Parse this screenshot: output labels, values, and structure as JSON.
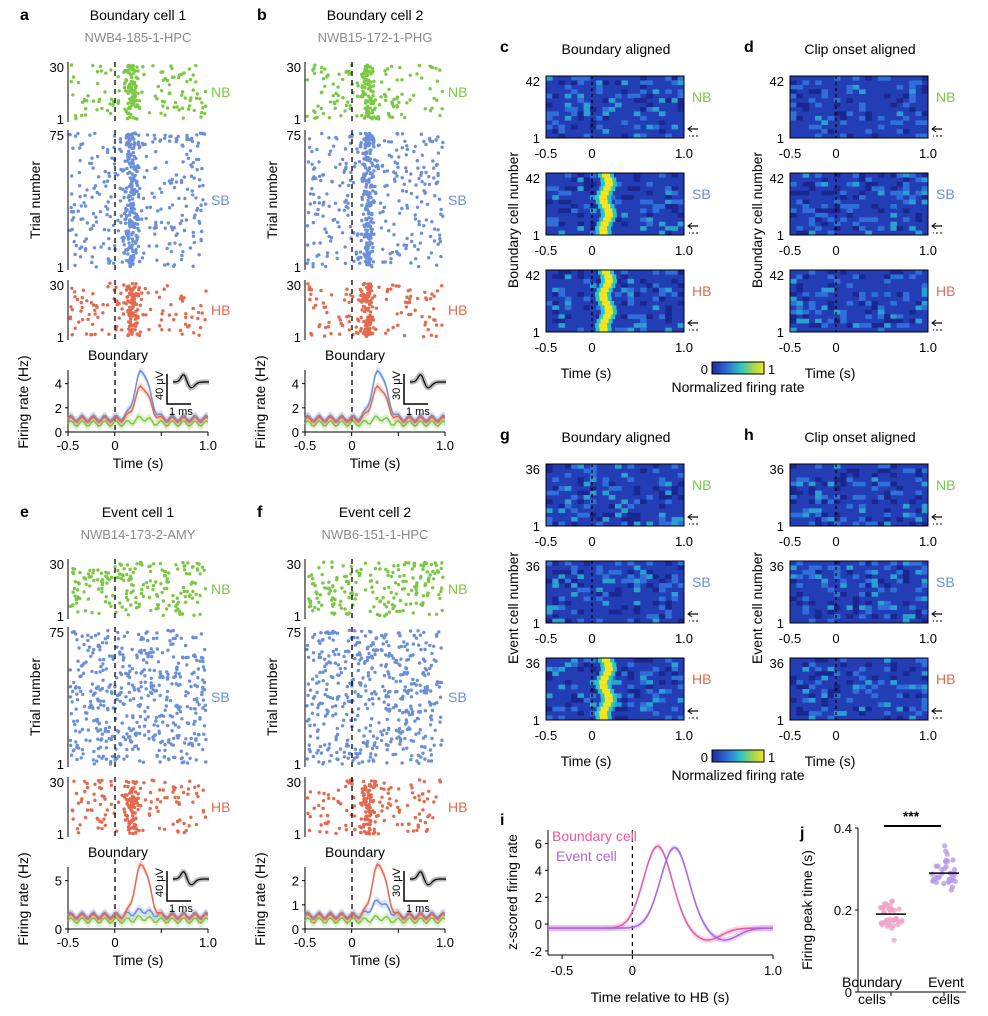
{
  "colors": {
    "nb": "#7ac943",
    "sb": "#6b8fd9",
    "hb": "#e36a4f",
    "boundary_cell": "#e85aa0",
    "event_cell": "#a766e8",
    "beeswarm_boundary": "#efa3c9",
    "beeswarm_event": "#b79be8"
  },
  "panel_letters": {
    "a": "a",
    "b": "b",
    "c": "c",
    "d": "d",
    "e": "e",
    "f": "f",
    "g": "g",
    "h": "h",
    "i": "i",
    "j": "j"
  },
  "condition_labels": {
    "nb": "NB",
    "sb": "SB",
    "hb": "HB"
  },
  "raster_panels": [
    {
      "id": "a",
      "title": "Boundary cell 1",
      "cell_id": "NWB4-185-1-HPC",
      "psth_title": "Boundary",
      "psth_ylabel": "Firing rate (Hz)",
      "psth_yticks": [
        "0",
        "2",
        "4"
      ],
      "scale_uv": "40 μV",
      "scale_ms": "1 ms",
      "peak_hz": 6
    },
    {
      "id": "b",
      "title": "Boundary cell 2",
      "cell_id": "NWB15-172-1-PHG",
      "psth_title": "Boundary",
      "psth_ylabel": "Firing rate (Hz)",
      "psth_yticks": [
        "0",
        "2",
        "4"
      ],
      "scale_uv": "30 μV",
      "scale_ms": "1 ms",
      "peak_hz": 4
    },
    {
      "id": "e",
      "title": "Event cell 1",
      "cell_id": "NWB14-173-2-AMY",
      "psth_title": "Boundary",
      "psth_ylabel": "Firing rate (Hz)",
      "psth_yticks": [
        "0",
        "5"
      ],
      "scale_uv": "40 μV",
      "scale_ms": "1 ms",
      "peak_hz": 7
    },
    {
      "id": "f",
      "title": "Event cell 2",
      "cell_id": "NWB6-151-1-HPC",
      "psth_title": "Boundary",
      "psth_ylabel": "Firing rate (Hz)",
      "psth_yticks": [
        "0",
        "1",
        "2"
      ],
      "scale_uv": "30 μV",
      "scale_ms": "1 ms",
      "peak_hz": 2.8
    }
  ],
  "raster_common": {
    "ylabel": "Trial number",
    "xlabel": "Time (s)",
    "xticks": [
      "-0.5",
      "0",
      "0.5",
      "1.0"
    ],
    "nb_ticks": [
      "1",
      "30"
    ],
    "sb_ticks": [
      "1",
      "75"
    ],
    "hb_ticks": [
      "1",
      "30"
    ]
  },
  "heatmap_panels": [
    {
      "id": "c",
      "title": "Boundary aligned",
      "ylabel": "Boundary cell number",
      "top_tick": "42",
      "hot_rows": [
        false,
        true,
        true
      ]
    },
    {
      "id": "d",
      "title": "Clip onset aligned",
      "ylabel": "Boundary cell number",
      "top_tick": "42",
      "hot_rows": [
        false,
        false,
        false
      ]
    },
    {
      "id": "g",
      "title": "Boundary aligned",
      "ylabel": "Event cell number",
      "top_tick": "36",
      "hot_rows": [
        false,
        false,
        true
      ]
    },
    {
      "id": "h",
      "title": "Clip onset aligned",
      "ylabel": "Event cell number",
      "top_tick": "36",
      "hot_rows": [
        false,
        false,
        false
      ]
    }
  ],
  "heatmap_common": {
    "xlabel": "Time (s)",
    "xticks": [
      "-0.5",
      "0",
      "1.0"
    ],
    "bottom_tick": "1",
    "colorbar_label": "Normalized firing rate",
    "colorbar_min": "0",
    "colorbar_max": "1"
  },
  "chart_data": [
    {
      "panel": "i",
      "type": "line",
      "ylabel": "z-scored firing rate",
      "xlabel": "Time relative to HB (s)",
      "xticks": [
        "-0.5",
        "0",
        "1.0"
      ],
      "yticks": [
        "-2",
        "0",
        "2",
        "4",
        "6"
      ],
      "xlim": [
        -0.6,
        1.0
      ],
      "ylim": [
        -2.3,
        7
      ],
      "series": [
        {
          "name": "Boundary cell",
          "peak_x": 0.18,
          "peak_y": 5.8
        },
        {
          "name": "Event cell",
          "peak_x": 0.3,
          "peak_y": 5.7
        }
      ]
    },
    {
      "panel": "j",
      "type": "scatter",
      "ylabel": "Firing peak time (s)",
      "yticks": [
        "0",
        "0.2",
        "0.4"
      ],
      "ylim": [
        0,
        0.4
      ],
      "categories": [
        "Boundary cells",
        "Event cells"
      ],
      "medians": [
        0.19,
        0.29
      ],
      "significance": "***"
    }
  ],
  "panel_i_legend": {
    "boundary": "Boundary cell",
    "event": "Event cell"
  },
  "panel_j_labels": {
    "cat1_line1": "Boundary",
    "cat1_line2": "cells",
    "cat2_line1": "Event",
    "cat2_line2": "cells"
  }
}
